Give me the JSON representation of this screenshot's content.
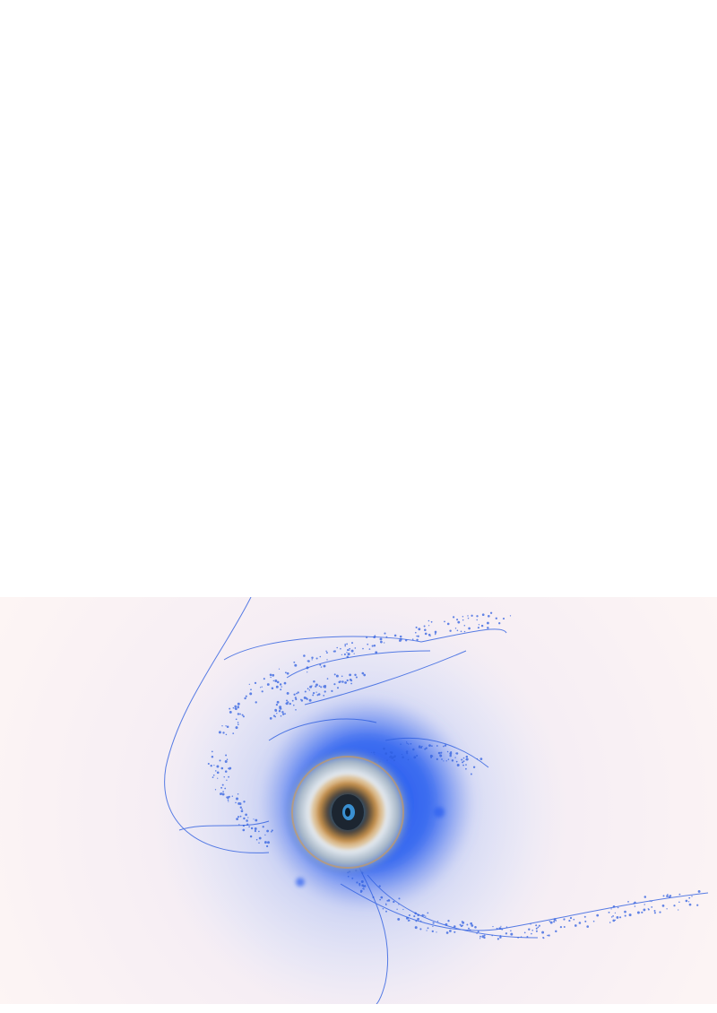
{
  "image": {
    "subject": "",
    "colors": {
      "page_background": "#ffffff",
      "artwork_background": "#fdf3f3",
      "glow_outer": "#c8d2f5",
      "glow_core": "#2d5cf0",
      "particles": "#2f5fe0",
      "ring_accent": "#d99a45",
      "eye_center": "#0a1a2a",
      "eye_iris": "#3a8fd0"
    }
  }
}
